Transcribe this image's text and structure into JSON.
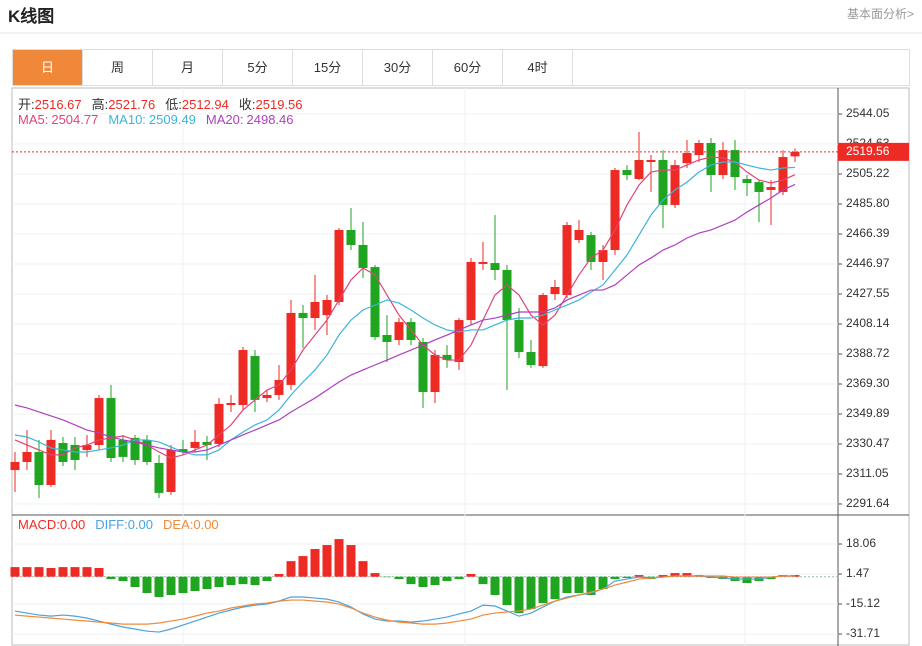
{
  "header": {
    "title": "K线图",
    "link": "基本面分析>"
  },
  "tabs": {
    "items": [
      "日",
      "周",
      "月",
      "5分",
      "15分",
      "30分",
      "60分",
      "4时"
    ],
    "active": 0
  },
  "chart_data": [
    {
      "type": "candlestick",
      "ohlc_labels": [
        "开:",
        "高:",
        "低:",
        "收:"
      ],
      "up_color": "#ee2a24",
      "down_color": "#1fa51f",
      "grid": true,
      "ylim": [
        2284.5,
        2560.9
      ],
      "yticks": [
        2291.64,
        2311.05,
        2330.47,
        2349.89,
        {
          "value": 2369.3,
          "label": "2369.30"
        },
        2388.72,
        2408.14,
        2427.55,
        2446.97,
        2466.39,
        {
          "value": 2485.8,
          "label": "2485.80"
        },
        2505.22,
        2524.63,
        2544.05
      ],
      "open": [
        2313.6,
        2318.8,
        2325.3,
        2303.9,
        2331.1,
        2329.8,
        2326.6,
        2329.8,
        2360.2,
        2333.1,
        2334.4,
        2333.1,
        2318.2,
        2299.4,
        2327.2,
        2327.9,
        2331.8,
        2330.5,
        2355.7,
        2355.7,
        2387.4,
        2360.2,
        2362.2,
        2368.7,
        2415.3,
        2412.0,
        2413.9,
        2422.4,
        2469.0,
        2459.3,
        2445.0,
        2401.0,
        2397.8,
        2409.4,
        2396.5,
        2364.1,
        2388.1,
        2383.5,
        2410.7,
        2447.0,
        2447.6,
        2443.1,
        2410.7,
        2390.0,
        2380.9,
        2427.5,
        2426.9,
        2462.5,
        2465.7,
        2448.3,
        2456.0,
        2507.8,
        2502.0,
        2513.0,
        2514.3,
        2485.2,
        2512.3,
        2517.5,
        2525.3,
        2504.6,
        2520.7,
        2502.0,
        2500.0,
        2494.9,
        2493.6,
        2516.67
      ],
      "high": [
        2325.3,
        2339.5,
        2333.1,
        2339.5,
        2335.0,
        2335.0,
        2336.3,
        2362.2,
        2368.7,
        2336.3,
        2336.3,
        2336.3,
        2323.4,
        2329.8,
        2333.1,
        2339.5,
        2335.7,
        2360.2,
        2362.2,
        2393.3,
        2391.3,
        2365.4,
        2381.6,
        2423.7,
        2420.4,
        2439.9,
        2426.9,
        2470.3,
        2483.2,
        2474.2,
        2446.3,
        2413.9,
        2412.0,
        2412.0,
        2399.1,
        2391.3,
        2394.5,
        2412.0,
        2450.9,
        2461.2,
        2478.7,
        2446.3,
        2418.5,
        2397.8,
        2428.2,
        2436.6,
        2474.2,
        2475.4,
        2467.7,
        2459.3,
        2509.1,
        2511.0,
        2532.4,
        2517.5,
        2520.7,
        2514.3,
        2527.2,
        2527.2,
        2528.5,
        2525.9,
        2527.2,
        2504.6,
        2501.3,
        2501.3,
        2520.7,
        2521.76
      ],
      "low": [
        2299.4,
        2313.6,
        2295.4,
        2302.6,
        2316.2,
        2313.6,
        2322.1,
        2326.6,
        2318.8,
        2318.8,
        2316.9,
        2316.9,
        2295.5,
        2297.5,
        2323.4,
        2325.3,
        2320.1,
        2328.5,
        2351.2,
        2352.5,
        2351.2,
        2357.6,
        2359.0,
        2365.4,
        2392.6,
        2404.3,
        2401.0,
        2420.4,
        2456.0,
        2437.9,
        2397.8,
        2383.5,
        2394.5,
        2394.5,
        2353.8,
        2357.0,
        2379.7,
        2378.4,
        2407.5,
        2443.1,
        2436.6,
        2365.4,
        2386.1,
        2379.7,
        2379.7,
        2423.7,
        2424.9,
        2460.6,
        2443.1,
        2436.6,
        2452.8,
        2501.3,
        2501.3,
        2493.6,
        2470.3,
        2483.2,
        2509.1,
        2513.0,
        2493.6,
        2502.0,
        2494.9,
        2491.0,
        2474.1,
        2472.2,
        2491.6,
        2512.94
      ],
      "close": [
        2318.8,
        2325.3,
        2303.9,
        2333.1,
        2318.8,
        2320.1,
        2329.8,
        2360.2,
        2321.4,
        2322.1,
        2320.1,
        2318.8,
        2298.8,
        2326.6,
        2325.3,
        2331.8,
        2329.8,
        2356.4,
        2357.0,
        2391.3,
        2359.0,
        2362.2,
        2371.9,
        2415.3,
        2412.0,
        2422.4,
        2423.7,
        2469.0,
        2459.3,
        2444.4,
        2399.7,
        2396.5,
        2409.4,
        2397.8,
        2364.1,
        2388.1,
        2384.8,
        2410.7,
        2448.3,
        2448.3,
        2443.1,
        2410.7,
        2390.0,
        2381.6,
        2426.9,
        2432.1,
        2472.2,
        2469.0,
        2448.3,
        2456.0,
        2507.8,
        2504.6,
        2514.3,
        2514.3,
        2485.2,
        2511.0,
        2518.8,
        2525.3,
        2504.6,
        2520.7,
        2503.3,
        2499.4,
        2493.6,
        2496.8,
        2516.2,
        2519.56
      ],
      "series": [
        {
          "name": "MA5:",
          "color": "#e0457b",
          "values": [
            2333.1,
            2329.8,
            2326.6,
            2323.4,
            2323.4,
            2327.9,
            2329.8,
            2333.1,
            2334.4,
            2335.7,
            2333.1,
            2329.8,
            2325.3,
            2321.4,
            2323.4,
            2326.6,
            2329.8,
            2336.3,
            2342.8,
            2352.5,
            2359.0,
            2365.4,
            2368.7,
            2378.4,
            2391.3,
            2401.0,
            2410.7,
            2423.7,
            2436.6,
            2444.4,
            2439.9,
            2426.9,
            2413.9,
            2404.3,
            2394.5,
            2388.1,
            2384.8,
            2384.8,
            2394.5,
            2410.7,
            2426.9,
            2433.4,
            2426.9,
            2413.9,
            2407.5,
            2413.9,
            2426.9,
            2439.9,
            2450.9,
            2456.0,
            2469.0,
            2485.2,
            2498.1,
            2506.5,
            2507.8,
            2507.8,
            2511.0,
            2514.3,
            2516.2,
            2515.6,
            2513.0,
            2506.5,
            2501.3,
            2499.4,
            2501.3,
            2504.77
          ]
        },
        {
          "name": "MA10:",
          "color": "#3cb5d8",
          "values": [
            2336.3,
            2335.0,
            2331.8,
            2327.9,
            2326.6,
            2325.3,
            2325.3,
            2326.6,
            2327.9,
            2329.8,
            2333.1,
            2333.1,
            2331.8,
            2328.5,
            2325.3,
            2323.4,
            2323.4,
            2326.6,
            2333.1,
            2338.2,
            2342.8,
            2346.0,
            2352.5,
            2362.2,
            2370.6,
            2378.4,
            2388.1,
            2401.0,
            2410.7,
            2417.2,
            2420.4,
            2423.7,
            2421.7,
            2417.2,
            2412.0,
            2407.5,
            2404.3,
            2403.0,
            2404.3,
            2404.3,
            2407.5,
            2410.7,
            2412.0,
            2412.0,
            2413.9,
            2417.2,
            2420.4,
            2423.7,
            2428.8,
            2433.4,
            2443.1,
            2452.8,
            2465.7,
            2478.7,
            2488.4,
            2494.9,
            2500.0,
            2506.5,
            2511.0,
            2513.0,
            2513.0,
            2511.0,
            2509.1,
            2507.8,
            2509.1,
            2509.49
          ]
        },
        {
          "name": "MA20:",
          "color": "#b03fbf",
          "values": [
            2355.7,
            2353.8,
            2351.2,
            2348.6,
            2346.0,
            2342.8,
            2339.5,
            2337.6,
            2335.0,
            2333.1,
            2331.8,
            2329.8,
            2327.9,
            2326.6,
            2325.3,
            2325.3,
            2326.6,
            2329.8,
            2333.1,
            2336.3,
            2339.5,
            2342.8,
            2346.0,
            2351.2,
            2355.7,
            2360.2,
            2365.4,
            2370.6,
            2375.1,
            2378.4,
            2381.6,
            2384.8,
            2388.1,
            2391.3,
            2394.5,
            2397.8,
            2401.0,
            2404.3,
            2407.5,
            2410.7,
            2412.0,
            2413.9,
            2415.9,
            2415.9,
            2415.9,
            2418.5,
            2423.7,
            2426.9,
            2430.1,
            2430.1,
            2433.4,
            2439.9,
            2446.3,
            2450.9,
            2456.0,
            2459.3,
            2463.8,
            2467.0,
            2469.0,
            2472.2,
            2475.4,
            2480.6,
            2485.2,
            2489.7,
            2494.9,
            2498.46
          ]
        }
      ]
    },
    {
      "type": "macd",
      "up_color": "#ee2a24",
      "down_color": "#1fa51f",
      "ylim": [
        -38.3,
        34.1
      ],
      "yticks": [
        18.06,
        1.47,
        -15.12,
        -31.71
      ],
      "series": [
        {
          "name": "MACD:",
          "color": "#ee2a24",
          "readout": "0.00",
          "values": [
            5.3,
            5.3,
            5.3,
            4.8,
            5.3,
            5.3,
            5.3,
            4.8,
            -1.3,
            -2.4,
            -5.7,
            -9.0,
            -11.2,
            -10.1,
            -9.0,
            -7.9,
            -6.8,
            -5.7,
            -4.6,
            -4.1,
            -4.6,
            -2.4,
            1.5,
            8.6,
            11.4,
            15.3,
            17.5,
            20.8,
            17.5,
            8.6,
            2.0,
            -0.2,
            -1.3,
            -4.1,
            -5.7,
            -4.6,
            -2.4,
            -1.3,
            1.5,
            -4.1,
            -10.1,
            -15.7,
            -20.1,
            -17.9,
            -14.6,
            -12.4,
            -9.0,
            -9.0,
            -10.1,
            -6.8,
            -1.3,
            -0.7,
            0.9,
            -1.3,
            0.9,
            2.0,
            2.0,
            0.9,
            -0.7,
            -1.3,
            -2.4,
            -3.5,
            -2.4,
            -1.3,
            0.9,
            0.9
          ]
        },
        {
          "name": "DIFF:",
          "color": "#4aa3df",
          "readout": "0.00",
          "values": [
            -19.0,
            -20.1,
            -21.2,
            -21.8,
            -21.2,
            -21.8,
            -22.9,
            -24.5,
            -26.2,
            -27.8,
            -28.9,
            -30.1,
            -30.6,
            -28.9,
            -26.7,
            -24.5,
            -22.3,
            -20.1,
            -18.4,
            -16.8,
            -15.7,
            -15.1,
            -13.5,
            -11.2,
            -11.2,
            -11.8,
            -12.4,
            -14.0,
            -16.8,
            -20.6,
            -23.4,
            -24.5,
            -24.5,
            -25.1,
            -24.5,
            -23.4,
            -22.3,
            -20.6,
            -19.0,
            -15.7,
            -16.2,
            -19.0,
            -21.8,
            -20.1,
            -16.8,
            -13.5,
            -11.2,
            -10.1,
            -9.0,
            -6.8,
            -2.4,
            -1.3,
            -0.2,
            -0.7,
            -0.2,
            0.4,
            0.4,
            0.4,
            -0.2,
            -0.7,
            -1.3,
            -1.3,
            -1.3,
            -0.2,
            0.4,
            0.4
          ]
        },
        {
          "name": "DEA:",
          "color": "#f08a3c",
          "readout": "0.00",
          "values": [
            -21.2,
            -21.8,
            -22.3,
            -22.9,
            -23.4,
            -24.0,
            -24.5,
            -25.1,
            -25.6,
            -26.2,
            -26.2,
            -26.2,
            -25.6,
            -24.5,
            -23.4,
            -21.8,
            -20.1,
            -19.0,
            -17.3,
            -16.2,
            -15.1,
            -14.6,
            -13.5,
            -12.9,
            -12.9,
            -13.5,
            -14.0,
            -15.1,
            -17.3,
            -20.1,
            -22.3,
            -24.0,
            -25.1,
            -25.6,
            -26.2,
            -26.2,
            -25.6,
            -24.5,
            -23.4,
            -21.2,
            -20.1,
            -19.5,
            -19.0,
            -17.9,
            -15.7,
            -13.5,
            -11.8,
            -10.1,
            -8.5,
            -6.8,
            -4.6,
            -3.0,
            -1.3,
            -0.7,
            -0.2,
            0.4,
            0.4,
            0.4,
            0.4,
            0.4,
            -0.2,
            -0.2,
            -0.2,
            -0.2,
            0.4,
            0.4
          ]
        }
      ]
    }
  ]
}
